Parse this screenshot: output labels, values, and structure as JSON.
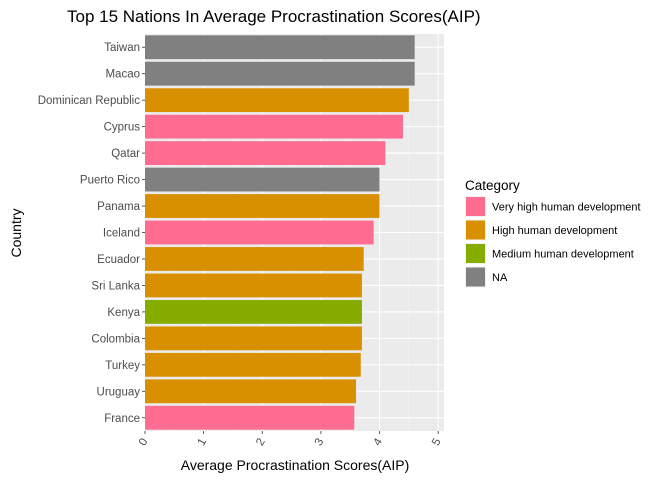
{
  "chart_data": {
    "type": "bar",
    "orientation": "horizontal",
    "title": "Top 15 Nations In Average Procrastination Scores(AIP)",
    "xlabel": "Average Procrastination Scores(AIP)",
    "ylabel": "Country",
    "xlim": [
      0,
      5.1
    ],
    "xticks": [
      "0",
      "1",
      "2",
      "3",
      "4",
      "5"
    ],
    "grid": true,
    "legend": {
      "title": "Category",
      "position": "right",
      "entries": [
        {
          "name": "Very high human development",
          "color": "#FF6C91"
        },
        {
          "name": "High human development",
          "color": "#D89000"
        },
        {
          "name": "Medium human development",
          "color": "#86AC00"
        },
        {
          "name": "NA",
          "color": "#808080"
        }
      ]
    },
    "bars": [
      {
        "category": "Taiwan",
        "value": 4.6,
        "group": "NA"
      },
      {
        "category": "Macao",
        "value": 4.6,
        "group": "NA"
      },
      {
        "category": "Dominican Republic",
        "value": 4.5,
        "group": "High human development"
      },
      {
        "category": "Cyprus",
        "value": 4.4,
        "group": "Very high human development"
      },
      {
        "category": "Qatar",
        "value": 4.1,
        "group": "Very high human development"
      },
      {
        "category": "Puerto Rico",
        "value": 4.0,
        "group": "NA"
      },
      {
        "category": "Panama",
        "value": 4.0,
        "group": "High human development"
      },
      {
        "category": "Iceland",
        "value": 3.9,
        "group": "Very high human development"
      },
      {
        "category": "Ecuador",
        "value": 3.73,
        "group": "High human development"
      },
      {
        "category": "Sri Lanka",
        "value": 3.7,
        "group": "High human development"
      },
      {
        "category": "Kenya",
        "value": 3.7,
        "group": "Medium human development"
      },
      {
        "category": "Colombia",
        "value": 3.7,
        "group": "High human development"
      },
      {
        "category": "Turkey",
        "value": 3.68,
        "group": "High human development"
      },
      {
        "category": "Uruguay",
        "value": 3.6,
        "group": "High human development"
      },
      {
        "category": "France",
        "value": 3.57,
        "group": "Very high human development"
      }
    ]
  }
}
